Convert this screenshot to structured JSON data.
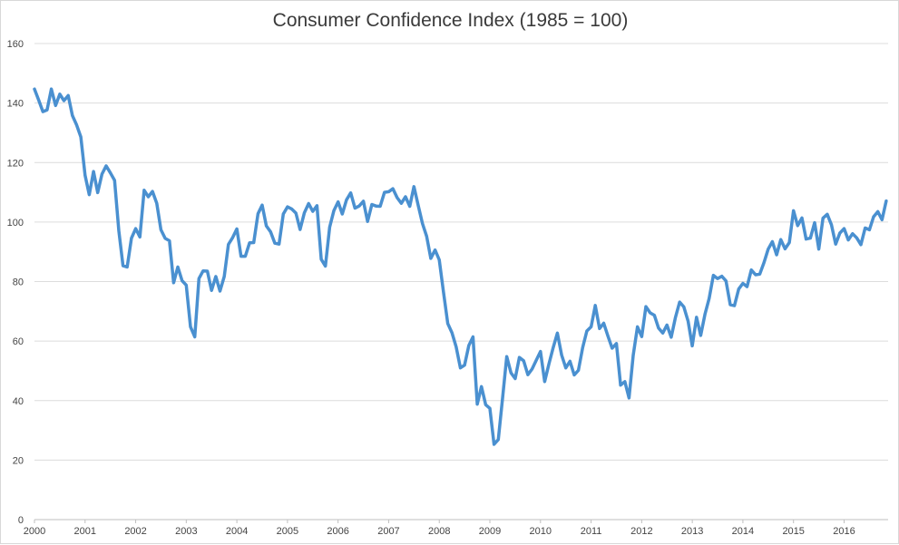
{
  "chart_data": {
    "type": "line",
    "title": "Consumer Confidence Index (1985 = 100)",
    "xlabel": "",
    "ylabel": "",
    "xlim": [
      2000,
      2016.87
    ],
    "ylim": [
      0,
      160
    ],
    "yticks": [
      0,
      20,
      40,
      60,
      80,
      100,
      120,
      140,
      160
    ],
    "xticks": [
      "2000",
      "2001",
      "2002",
      "2003",
      "2004",
      "2005",
      "2006",
      "2007",
      "2008",
      "2009",
      "2010",
      "2011",
      "2012",
      "2013",
      "2014",
      "2015",
      "2016"
    ],
    "grid": "horizontal",
    "legend": "none",
    "line_color": "#4a90d0",
    "series": [
      {
        "x": [
          2000.0,
          2000.083,
          2000.167,
          2000.25,
          2000.333,
          2000.417,
          2000.5,
          2000.583,
          2000.667,
          2000.75,
          2000.833,
          2000.917,
          2001.0,
          2001.083,
          2001.167,
          2001.25,
          2001.333,
          2001.417,
          2001.5,
          2001.583,
          2001.667,
          2001.75,
          2001.833,
          2001.917,
          2002.0,
          2002.083,
          2002.167,
          2002.25,
          2002.333,
          2002.417,
          2002.5,
          2002.583,
          2002.667,
          2002.75,
          2002.833,
          2002.917,
          2003.0,
          2003.083,
          2003.167,
          2003.25,
          2003.333,
          2003.417,
          2003.5,
          2003.583,
          2003.667,
          2003.75,
          2003.833,
          2003.917,
          2004.0,
          2004.083,
          2004.167,
          2004.25,
          2004.333,
          2004.417,
          2004.5,
          2004.583,
          2004.667,
          2004.75,
          2004.833,
          2004.917,
          2005.0,
          2005.083,
          2005.167,
          2005.25,
          2005.333,
          2005.417,
          2005.5,
          2005.583,
          2005.667,
          2005.75,
          2005.833,
          2005.917,
          2006.0,
          2006.083,
          2006.167,
          2006.25,
          2006.333,
          2006.417,
          2006.5,
          2006.583,
          2006.667,
          2006.75,
          2006.833,
          2006.917,
          2007.0,
          2007.083,
          2007.167,
          2007.25,
          2007.333,
          2007.417,
          2007.5,
          2007.583,
          2007.667,
          2007.75,
          2007.833,
          2007.917,
          2008.0,
          2008.083,
          2008.167,
          2008.25,
          2008.333,
          2008.417,
          2008.5,
          2008.583,
          2008.667,
          2008.75,
          2008.833,
          2008.917,
          2009.0,
          2009.083,
          2009.167,
          2009.25,
          2009.333,
          2009.417,
          2009.5,
          2009.583,
          2009.667,
          2009.75,
          2009.833,
          2009.917,
          2010.0,
          2010.083,
          2010.167,
          2010.25,
          2010.333,
          2010.417,
          2010.5,
          2010.583,
          2010.667,
          2010.75,
          2010.833,
          2010.917,
          2011.0,
          2011.083,
          2011.167,
          2011.25,
          2011.333,
          2011.417,
          2011.5,
          2011.583,
          2011.667,
          2011.75,
          2011.833,
          2011.917,
          2012.0,
          2012.083,
          2012.167,
          2012.25,
          2012.333,
          2012.417,
          2012.5,
          2012.583,
          2012.667,
          2012.75,
          2012.833,
          2012.917,
          2013.0,
          2013.083,
          2013.167,
          2013.25,
          2013.333,
          2013.417,
          2013.5,
          2013.583,
          2013.667,
          2013.75,
          2013.833,
          2013.917,
          2014.0,
          2014.083,
          2014.167,
          2014.25,
          2014.333,
          2014.417,
          2014.5,
          2014.583,
          2014.667,
          2014.75,
          2014.833,
          2014.917,
          2015.0,
          2015.083,
          2015.167,
          2015.25,
          2015.333,
          2015.417,
          2015.5,
          2015.583,
          2015.667,
          2015.75,
          2015.833,
          2015.917,
          2016.0,
          2016.083,
          2016.167,
          2016.25,
          2016.333,
          2016.417,
          2016.5,
          2016.583,
          2016.667,
          2016.75,
          2016.833
        ],
        "values": [
          144.7,
          141.0,
          137.1,
          137.7,
          144.7,
          139.2,
          143.0,
          140.8,
          142.5,
          135.8,
          132.6,
          128.6,
          115.7,
          109.2,
          117.0,
          109.9,
          116.1,
          118.9,
          116.5,
          114.0,
          97.0,
          85.3,
          84.9,
          94.6,
          97.8,
          95.0,
          110.7,
          108.5,
          110.3,
          106.3,
          97.4,
          94.5,
          93.7,
          79.6,
          84.9,
          80.3,
          78.8,
          64.8,
          61.4,
          81.0,
          83.6,
          83.5,
          77.0,
          81.7,
          76.8,
          81.7,
          92.5,
          94.8,
          97.7,
          88.5,
          88.5,
          93.0,
          93.1,
          102.8,
          105.7,
          98.7,
          96.7,
          92.9,
          92.6,
          102.7,
          105.1,
          104.4,
          103.0,
          97.5,
          103.1,
          106.2,
          103.6,
          105.5,
          87.5,
          85.2,
          98.3,
          103.8,
          106.8,
          102.7,
          107.5,
          109.8,
          104.7,
          105.4,
          107.0,
          100.2,
          105.9,
          105.4,
          105.3,
          110.0,
          110.2,
          111.2,
          108.2,
          106.3,
          108.5,
          105.3,
          111.9,
          105.6,
          99.5,
          95.2,
          87.8,
          90.6,
          87.3,
          76.4,
          65.9,
          62.8,
          58.1,
          51.0,
          51.9,
          58.5,
          61.4,
          38.8,
          44.7,
          38.6,
          37.4,
          25.3,
          26.9,
          40.8,
          54.8,
          49.3,
          47.4,
          54.5,
          53.4,
          48.7,
          50.6,
          53.6,
          56.5,
          46.4,
          52.3,
          57.7,
          62.7,
          55.3,
          51.0,
          53.2,
          48.6,
          50.2,
          57.8,
          63.4,
          64.8,
          72.0,
          64.2,
          66.0,
          61.7,
          57.6,
          59.2,
          45.2,
          46.4,
          40.9,
          55.2,
          64.8,
          61.5,
          71.6,
          69.5,
          68.7,
          64.4,
          62.7,
          65.4,
          61.3,
          68.0,
          73.1,
          71.5,
          66.7,
          58.4,
          68.0,
          61.9,
          69.0,
          74.3,
          82.1,
          81.0,
          81.8,
          80.2,
          72.2,
          71.9,
          77.5,
          79.4,
          78.3,
          83.9,
          82.3,
          82.5,
          86.4,
          90.9,
          93.4,
          89.0,
          94.1,
          91.0,
          93.1,
          103.8,
          98.8,
          101.4,
          94.3,
          94.6,
          99.8,
          90.9,
          101.3,
          102.6,
          99.1,
          92.6,
          96.3,
          97.8,
          94.0,
          96.1,
          94.7,
          92.4,
          98.0,
          97.4,
          101.8,
          103.5,
          100.8,
          107.1
        ]
      }
    ]
  }
}
